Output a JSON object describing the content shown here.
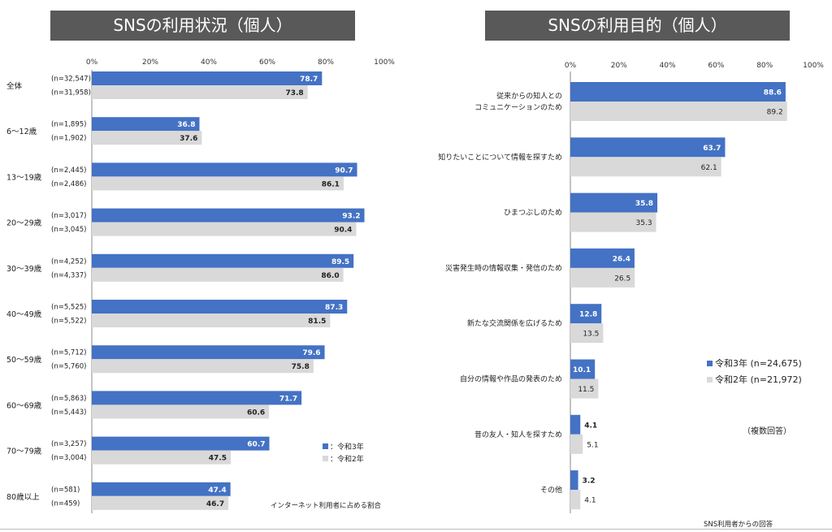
{
  "colors": {
    "r3": "#4472c4",
    "r2": "#d9d9d9",
    "title_bg": "#595959"
  },
  "chart_data": [
    {
      "type": "bar",
      "orientation": "horizontal",
      "title": "SNSの利用状況（個人）",
      "xlim": [
        0,
        100
      ],
      "tick_labels": [
        "0%",
        "20%",
        "40%",
        "60%",
        "80%",
        "100%"
      ],
      "categories": [
        "全体",
        "6～12歳",
        "13～19歳",
        "20～29歳",
        "30～39歳",
        "40～49歳",
        "50～59歳",
        "60～69歳",
        "70～79歳",
        "80歳以上"
      ],
      "sample_sizes_r3": [
        "(n=32,547)",
        "(n=1,895)",
        "(n=2,445)",
        "(n=3,017)",
        "(n=4,252)",
        "(n=5,525)",
        "(n=5,712)",
        "(n=5,863)",
        "(n=3,257)",
        "(n=581)"
      ],
      "sample_sizes_r2": [
        "(n=31,958)",
        "(n=1,902)",
        "(n=2,486)",
        "(n=3,045)",
        "(n=4,337)",
        "(n=5,522)",
        "(n=5,760)",
        "(n=5,443)",
        "(n=3,004)",
        "(n=459)"
      ],
      "series": [
        {
          "name": "：令和3年",
          "values": [
            78.7,
            36.8,
            90.7,
            93.2,
            89.5,
            87.3,
            79.6,
            71.7,
            60.7,
            47.4
          ]
        },
        {
          "name": "：令和2年",
          "values": [
            73.8,
            37.6,
            86.1,
            90.4,
            86.0,
            81.5,
            75.8,
            60.6,
            47.5,
            46.7
          ]
        }
      ],
      "legend_position": "bottom-right",
      "note": "インターネット利用者に占める割合"
    },
    {
      "type": "bar",
      "orientation": "horizontal",
      "title": "SNSの利用目的（個人）",
      "xlim": [
        0,
        100
      ],
      "tick_labels": [
        "0%",
        "20%",
        "40%",
        "60%",
        "80%",
        "100%"
      ],
      "categories": [
        [
          "従来からの知人との",
          "コミュニケーションのため"
        ],
        [
          "知りたいことについて情報を探すため"
        ],
        [
          "ひまつぶしのため"
        ],
        [
          "災害発生時の情報収集・発信のため"
        ],
        [
          "新たな交流関係を広げるため"
        ],
        [
          "自分の情報や作品の発表のため"
        ],
        [
          "昔の友人・知人を探すため"
        ],
        [
          "その他"
        ]
      ],
      "series": [
        {
          "name": "令和3年 (n=24,675)",
          "values": [
            88.6,
            63.7,
            35.8,
            26.4,
            12.8,
            10.1,
            4.1,
            3.2
          ]
        },
        {
          "name": "令和2年 (n=21,972)",
          "values": [
            89.2,
            62.1,
            35.3,
            26.5,
            13.5,
            11.5,
            5.1,
            4.1
          ]
        }
      ],
      "legend_position": "right",
      "note_multi": "（複数回答）",
      "note": "SNS利用者からの回答"
    }
  ]
}
